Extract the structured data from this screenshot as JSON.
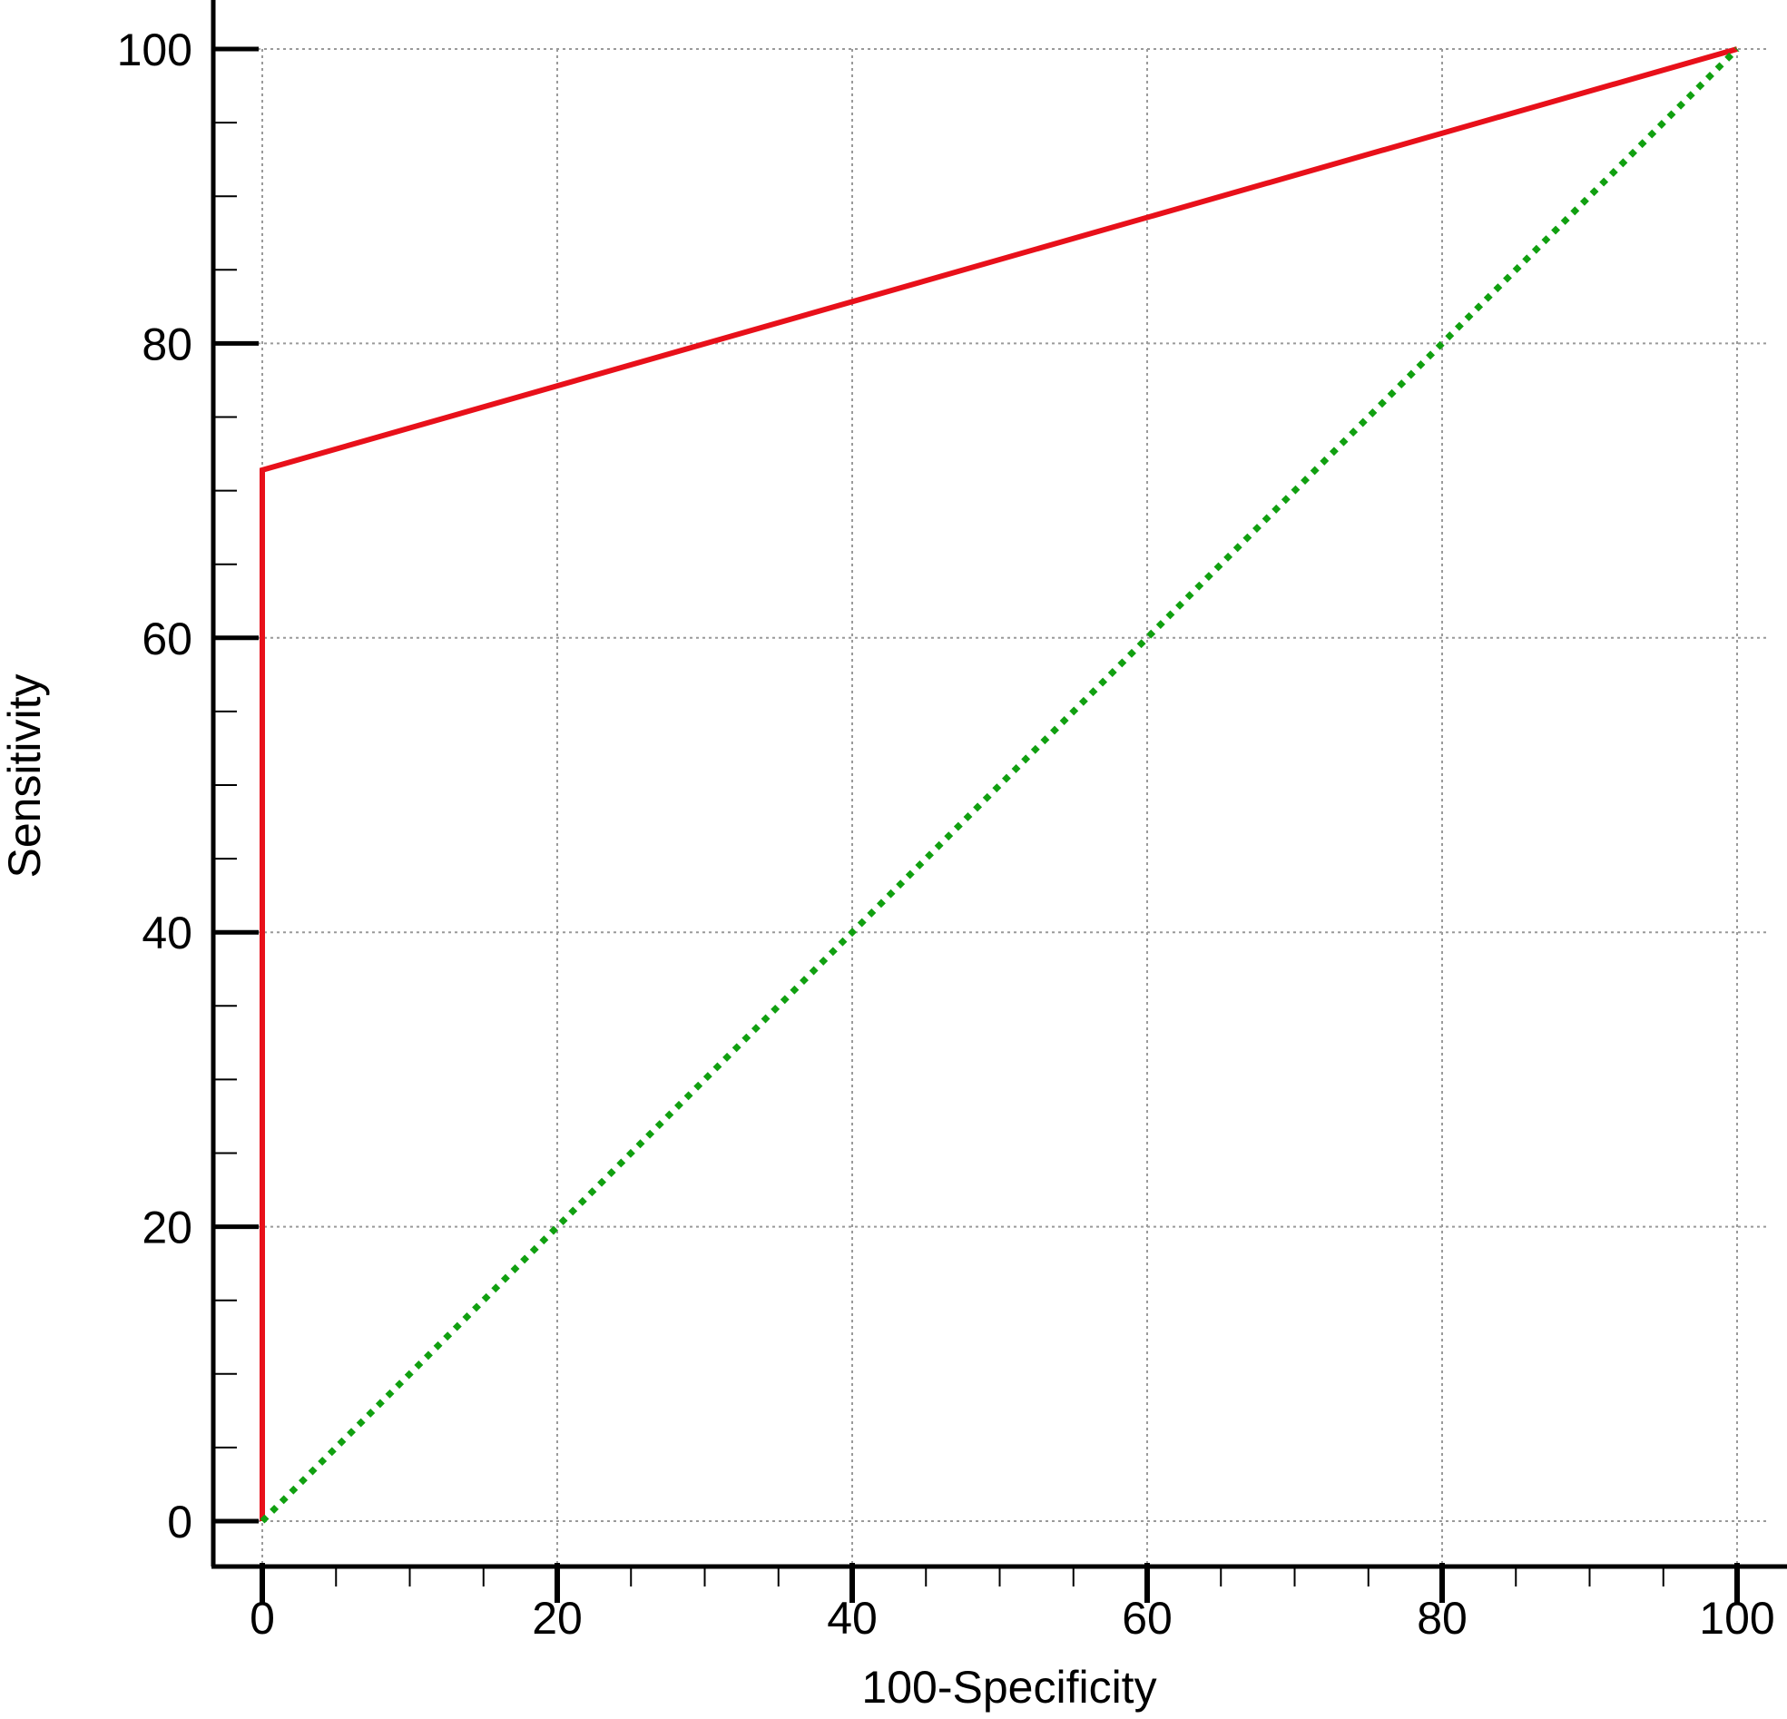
{
  "chart_data": {
    "type": "line",
    "title": "",
    "xlabel": "100-Specificity",
    "ylabel": "Sensitivity",
    "xlim": [
      0,
      100
    ],
    "ylim": [
      0,
      100
    ],
    "x_ticks": [
      0,
      20,
      40,
      60,
      80,
      100
    ],
    "y_ticks": [
      0,
      20,
      40,
      60,
      80,
      100
    ],
    "grid": true,
    "legend": "none",
    "series": [
      {
        "style": "solid",
        "color": "#e8101a",
        "points": [
          [
            0,
            0
          ],
          [
            0,
            71.4
          ],
          [
            100,
            100
          ]
        ]
      },
      {
        "style": "dotted",
        "color": "#10a010",
        "points": [
          [
            0,
            0
          ],
          [
            100,
            100
          ]
        ]
      }
    ]
  }
}
